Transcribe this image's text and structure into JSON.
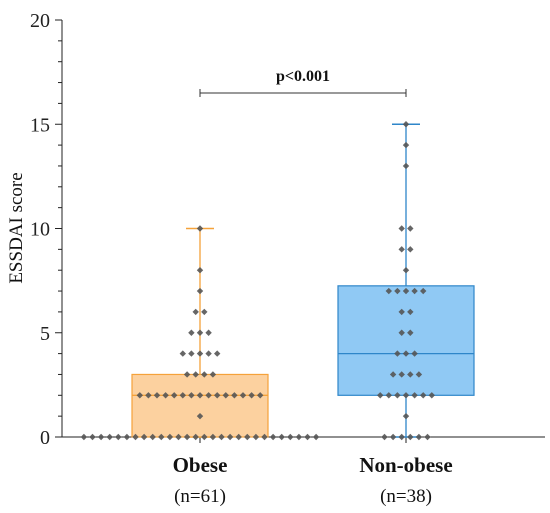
{
  "chart_data": {
    "type": "box",
    "ylabel": "ESSDAI score",
    "xlabel": "",
    "ylim": [
      0,
      20
    ],
    "yticks": [
      0,
      5,
      10,
      15,
      20
    ],
    "grid": false,
    "categories": [
      "Obese",
      "Non-obese"
    ],
    "sample_sizes": [
      "(n=61)",
      "(n=38)"
    ],
    "series": [
      {
        "category": "Obese",
        "color": "#F5A23A",
        "box_fill": "#FBC98E",
        "min": 0,
        "q1": 0,
        "median": 2,
        "q3": 3,
        "max": 10,
        "points": [
          0,
          0,
          0,
          0,
          0,
          0,
          0,
          0,
          0,
          0,
          0,
          0,
          0,
          0,
          0,
          0,
          0,
          0,
          0,
          0,
          0,
          0,
          0,
          0,
          0,
          0,
          0,
          0,
          1,
          2,
          2,
          2,
          2,
          2,
          2,
          2,
          2,
          2,
          2,
          2,
          2,
          2,
          2,
          2,
          3,
          3,
          3,
          3,
          4,
          4,
          4,
          4,
          4,
          5,
          5,
          5,
          6,
          6,
          7,
          8,
          10
        ]
      },
      {
        "category": "Non-obese",
        "color": "#2E86C9",
        "box_fill": "#7CC0F2",
        "min": 0,
        "q1": 2,
        "median": 4,
        "q3": 7.25,
        "max": 15,
        "points": [
          0,
          0,
          0,
          0,
          0,
          0,
          1,
          2,
          2,
          2,
          2,
          2,
          2,
          2,
          3,
          3,
          3,
          3,
          4,
          4,
          4,
          5,
          5,
          6,
          6,
          7,
          7,
          7,
          7,
          7,
          8,
          9,
          9,
          10,
          10,
          13,
          14,
          15
        ]
      }
    ],
    "annotations": [
      {
        "text": "p<0.001",
        "between": [
          "Obese",
          "Non-obese"
        ],
        "y": 16.5
      }
    ]
  }
}
